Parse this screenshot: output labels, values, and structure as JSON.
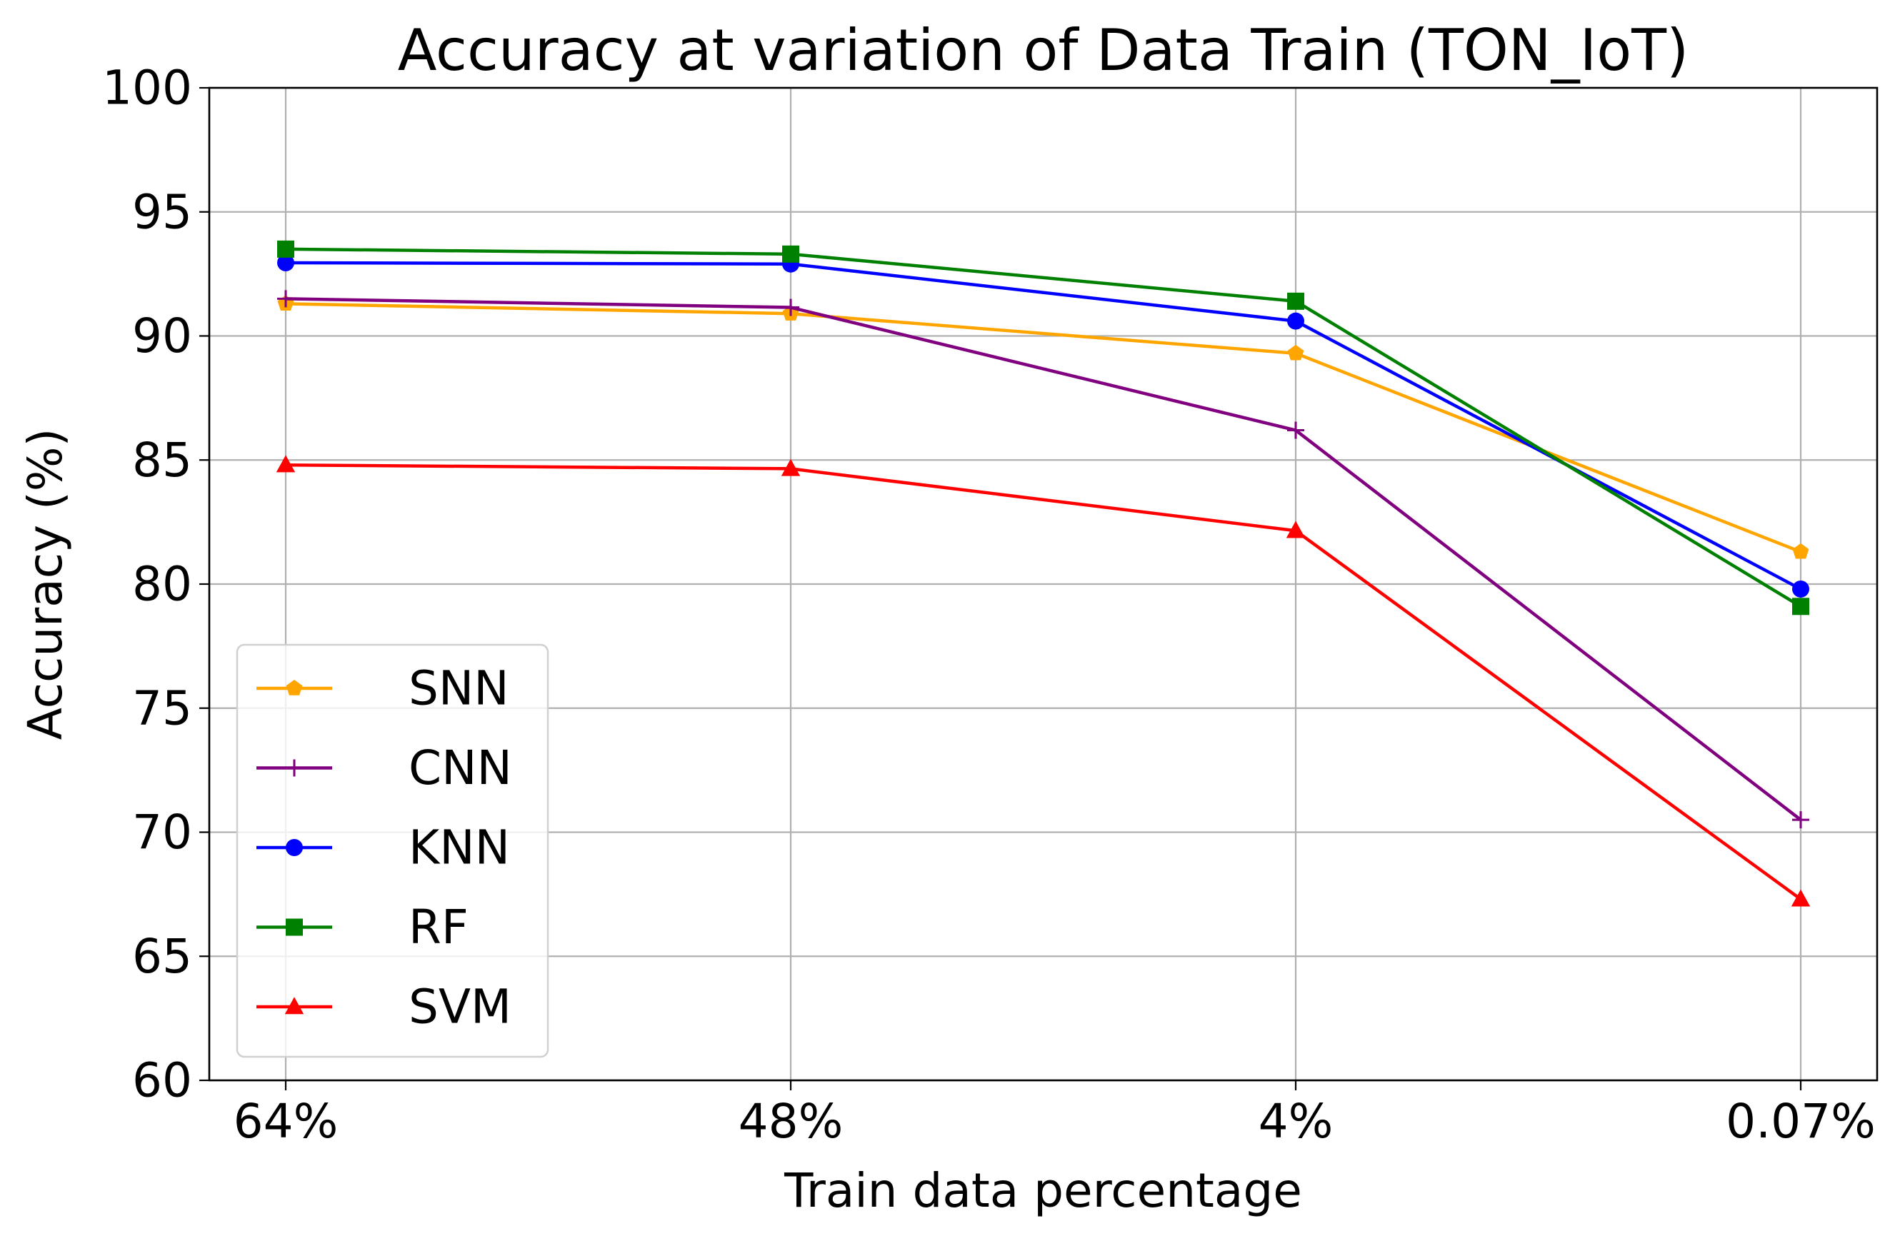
{
  "chart_data": {
    "type": "line",
    "title": "Accuracy at variation of Data Train (TON_IoT)",
    "xlabel": "Train data percentage",
    "ylabel": "Accuracy (%)",
    "categories": [
      "64%",
      "48%",
      "4%",
      "0.07%"
    ],
    "ylim": [
      60,
      100
    ],
    "yticks": [
      60,
      65,
      70,
      75,
      80,
      85,
      90,
      95,
      100
    ],
    "grid": true,
    "legend_position": "lower-left",
    "series": [
      {
        "name": "SNN",
        "color": "#ffa500",
        "marker": "pentagon",
        "values": [
          91.3,
          90.9,
          89.3,
          81.3
        ]
      },
      {
        "name": "CNN",
        "color": "#800080",
        "marker": "plus",
        "values": [
          91.5,
          91.15,
          86.2,
          70.5
        ]
      },
      {
        "name": "KNN",
        "color": "#0000ff",
        "marker": "circle",
        "values": [
          92.95,
          92.9,
          90.6,
          79.8
        ]
      },
      {
        "name": "RF",
        "color": "#008000",
        "marker": "square",
        "values": [
          93.5,
          93.3,
          91.4,
          79.1
        ]
      },
      {
        "name": "SVM",
        "color": "#ff0000",
        "marker": "triangle",
        "values": [
          84.8,
          84.65,
          82.15,
          67.3
        ]
      }
    ]
  }
}
